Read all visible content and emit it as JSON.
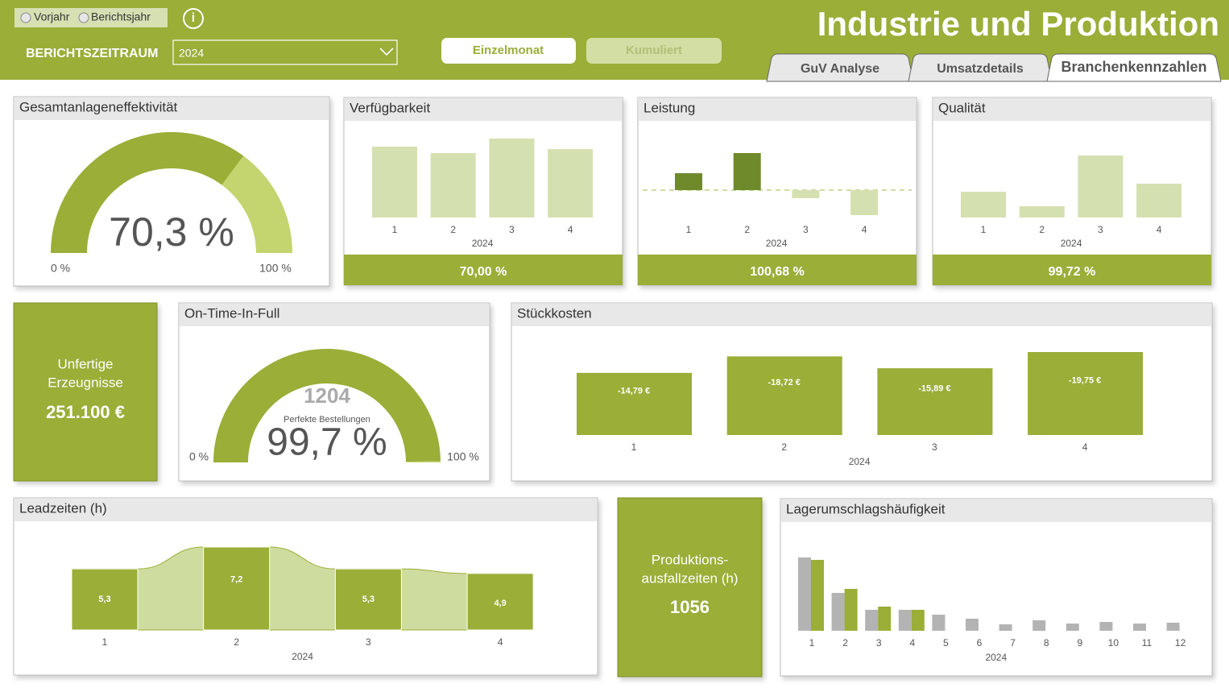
{
  "header": {
    "toggle": [
      "Vorjahr",
      "Berichtsjahr"
    ],
    "info": "i",
    "period_label": "BERICHTSZEITRAUM",
    "period": "2024",
    "buttons": [
      "Einzelmonat",
      "Kumuliert"
    ],
    "title": "Industrie und Produktion",
    "tabs": [
      "GuV Analyse",
      "Umsatzdetails",
      "Branchenkennzahlen"
    ]
  },
  "oee": {
    "type": "gauge",
    "title": "Gesamtanlageneffektivität",
    "value": 70.3,
    "value_label": "70,3 %",
    "min": {
      "value": 0,
      "label": "0 %"
    },
    "max": {
      "value": 100,
      "label": "100 %"
    },
    "color": "#9aae38",
    "rest_color": "#c4d46e"
  },
  "availability": {
    "type": "bar",
    "title": "Verfügbarkeit",
    "categories": [
      "1",
      "2",
      "3",
      "4"
    ],
    "group": "2024",
    "values": [
      88,
      80,
      98,
      85
    ],
    "color": "#d5e0b0",
    "footer": "70,00 %"
  },
  "performance": {
    "type": "deviation",
    "title": "Leistung",
    "categories": [
      "1",
      "2",
      "3",
      "4"
    ],
    "group": "2024",
    "values": [
      21,
      46,
      -10,
      -31
    ],
    "positive_color": "#6f8a2b",
    "negative_color": "#d5e0b0",
    "footer": "100,68 %"
  },
  "quality": {
    "type": "bar",
    "title": "Qualität",
    "categories": [
      "1",
      "2",
      "3",
      "4"
    ],
    "group": "2024",
    "values": [
      32,
      14,
      77,
      42
    ],
    "color": "#d5e0b0",
    "footer": "99,72 %"
  },
  "wip": {
    "label": [
      "Unfertige",
      "Erzeugnisse"
    ],
    "value": "251.100 €"
  },
  "otif": {
    "type": "gauge",
    "title": "On-Time-In-Full",
    "count": "1204",
    "count_label": "Perfekte Bestellungen",
    "value": 99.7,
    "value_label": "99,7 %",
    "min": {
      "value": 0,
      "label": "0 %"
    },
    "max": {
      "value": 100,
      "label": "100 %"
    },
    "color": "#9aae38",
    "rest_color": "#c4d46e"
  },
  "unit_costs": {
    "type": "bar",
    "title": "Stückkosten",
    "categories": [
      "1",
      "2",
      "3",
      "4"
    ],
    "group": "2024",
    "values": [
      -14.79,
      -18.72,
      -15.89,
      -19.75
    ],
    "value_labels": [
      "-14,79 €",
      "-18,72 €",
      "-15,89 €",
      "-19,75 €"
    ],
    "color": "#9aae38"
  },
  "lead_times": {
    "type": "bar",
    "title": "Leadzeiten (h)",
    "categories": [
      "1",
      "2",
      "3",
      "4"
    ],
    "group": "2024",
    "values": [
      5.3,
      7.2,
      5.3,
      4.9
    ],
    "value_labels": [
      "5,3",
      "7,2",
      "5,3",
      "4,9"
    ],
    "color": "#9aae38",
    "area_color": "#cfdca0"
  },
  "downtime": {
    "label": [
      "Produktions-",
      "ausfallzeiten (h)"
    ],
    "value": "1056"
  },
  "turnover": {
    "type": "bar",
    "title": "Lagerumschlagshäufigkeit",
    "categories": [
      "1",
      "2",
      "3",
      "4",
      "5",
      "6",
      "7",
      "8",
      "9",
      "10",
      "11",
      "12"
    ],
    "group": "2024",
    "series": [
      {
        "color": "#b3b3b3",
        "values": [
          91,
          47,
          26,
          26,
          20,
          15,
          8,
          13,
          9,
          11,
          9,
          10
        ]
      },
      {
        "color": "#9aae38",
        "values": [
          88,
          52,
          30,
          26,
          null,
          null,
          null,
          null,
          null,
          null,
          null,
          null
        ]
      }
    ]
  }
}
